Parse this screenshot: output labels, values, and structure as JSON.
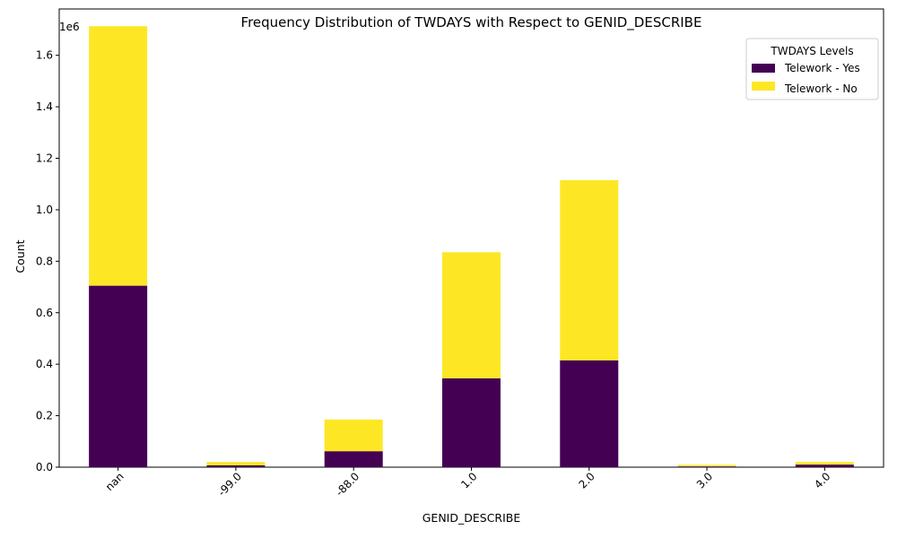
{
  "chart_data": {
    "type": "bar",
    "stacked": true,
    "title": "Frequency Distribution of TWDAYS with Respect to GENID_DESCRIBE",
    "xlabel": "GENID_DESCRIBE",
    "ylabel": "Count",
    "y_offset_label": "1e6",
    "y_tick_labels": [
      "0.0",
      "0.2",
      "0.4",
      "0.6",
      "0.8",
      "1.0",
      "1.2",
      "1.4",
      "1.6"
    ],
    "ylim": [
      0,
      1780000
    ],
    "categories": [
      "nan",
      "-99.0",
      "-88.0",
      "1.0",
      "2.0",
      "3.0",
      "4.0"
    ],
    "series": [
      {
        "name": "Telework - Yes",
        "color": "#440154",
        "values": [
          705000,
          7000,
          62000,
          345000,
          415000,
          3000,
          10000
        ]
      },
      {
        "name": "Telework - No",
        "color": "#fde725",
        "values": [
          1008000,
          13000,
          123000,
          490000,
          700000,
          6000,
          10000
        ]
      }
    ],
    "legend": {
      "title": "TWDAYS Levels",
      "position": "top-right"
    },
    "grid": false
  }
}
